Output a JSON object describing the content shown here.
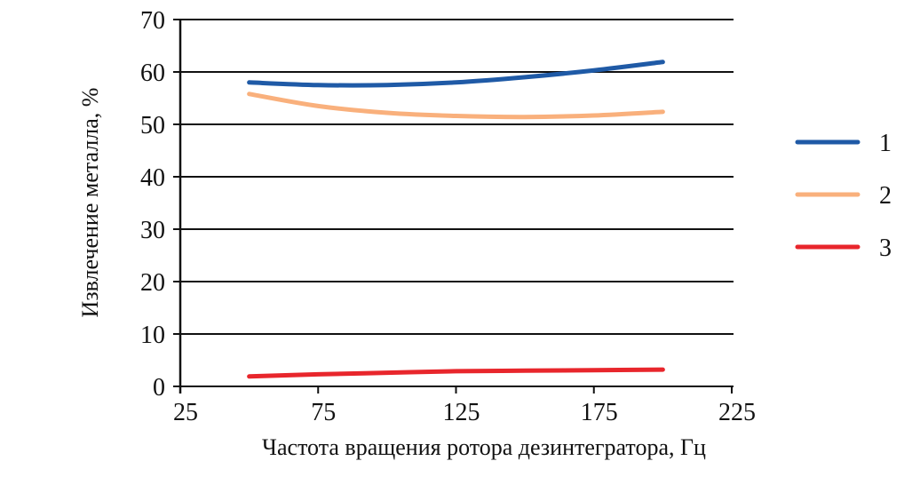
{
  "chart_data": {
    "type": "line",
    "title": "",
    "xlabel": "Частота вращения ротора дезинтегратора, Гц",
    "ylabel": "Извлечение металла, %",
    "xlim": [
      25,
      225
    ],
    "ylim": [
      0,
      70
    ],
    "xticks": [
      25,
      75,
      125,
      175,
      225
    ],
    "yticks": [
      0,
      10,
      20,
      30,
      40,
      50,
      60,
      70
    ],
    "grid": "horizontal",
    "legend_position": "right",
    "x": [
      50,
      75,
      100,
      125,
      150,
      175,
      200
    ],
    "series": [
      {
        "name": "1",
        "color": "#1f5aa6",
        "values": [
          58.0,
          57.5,
          57.5,
          58.0,
          59.0,
          60.3,
          61.9
        ]
      },
      {
        "name": "2",
        "color": "#f9b07c",
        "values": [
          55.8,
          53.5,
          52.2,
          51.6,
          51.4,
          51.7,
          52.4
        ]
      },
      {
        "name": "3",
        "color": "#e8262c",
        "values": [
          1.9,
          2.3,
          2.6,
          2.9,
          3.0,
          3.1,
          3.2
        ]
      }
    ]
  },
  "legend": {
    "items": [
      {
        "label": "1",
        "color": "#1f5aa6"
      },
      {
        "label": "2",
        "color": "#f9b07c"
      },
      {
        "label": "3",
        "color": "#e8262c"
      }
    ]
  },
  "axes": {
    "xlabel": "Частота вращения ротора дезинтегратора, Гц",
    "ylabel": "Извлечение металла, %",
    "xticks": [
      "25",
      "75",
      "125",
      "175",
      "225"
    ],
    "yticks": [
      "0",
      "10",
      "20",
      "30",
      "40",
      "50",
      "60",
      "70"
    ]
  }
}
